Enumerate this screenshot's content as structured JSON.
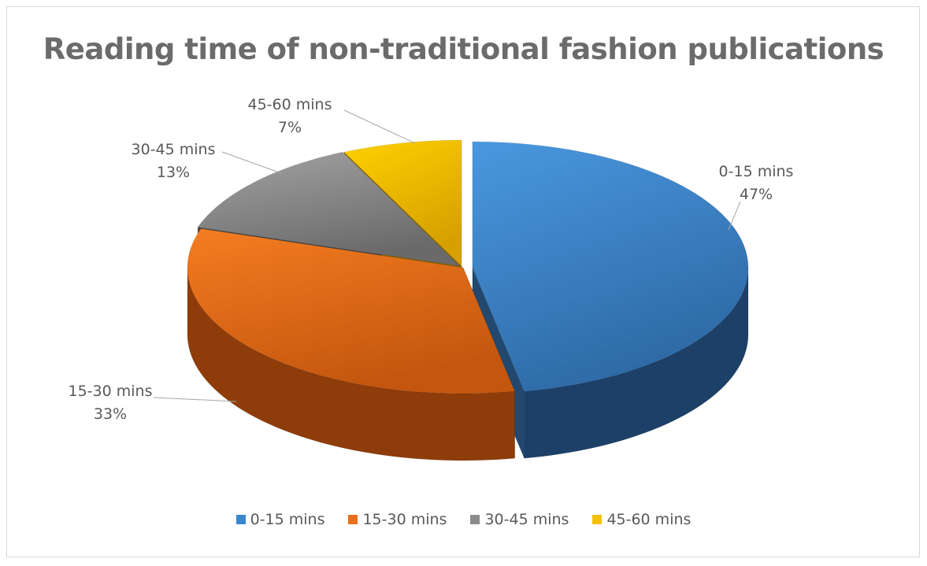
{
  "chart_data": {
    "type": "pie",
    "style": "3d-exploded",
    "title": "Reading time of non-traditional fashion publications",
    "categories": [
      "0-15 mins",
      "15-30 mins",
      "30-45 mins",
      "45-60 mins"
    ],
    "values": [
      47,
      33,
      13,
      7
    ],
    "data_labels": [
      "47%",
      "33%",
      "13%",
      "7%"
    ],
    "colors": [
      "#3a86d0",
      "#e8701a",
      "#8c8c8c",
      "#f5c000"
    ],
    "legend": "bottom"
  }
}
